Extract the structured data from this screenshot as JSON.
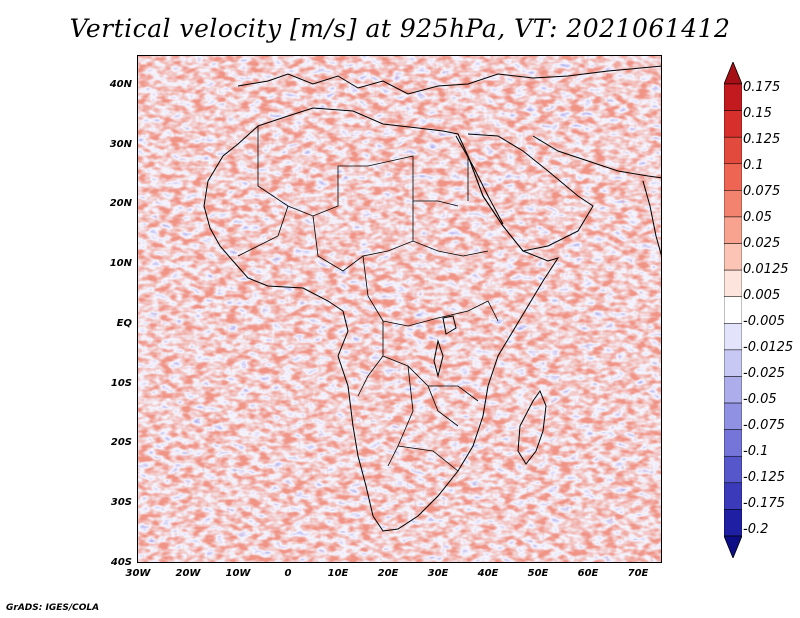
{
  "title": "Vertical velocity [m/s] at 925hPa, VT: 2021061412",
  "credit": "GrADS: IGES/COLA",
  "map": {
    "region": "Africa",
    "lat_range": [
      -40,
      45
    ],
    "lon_range": [
      -30,
      75
    ],
    "lat_ticks": [
      "40N",
      "30N",
      "20N",
      "10N",
      "EQ",
      "10S",
      "20S",
      "30S",
      "40S"
    ],
    "lon_ticks": [
      "30W",
      "20W",
      "10W",
      "0",
      "10E",
      "20E",
      "30E",
      "40E",
      "50E",
      "60E",
      "70E"
    ]
  },
  "colorbar": {
    "labels": [
      "0.175",
      "0.15",
      "0.125",
      "0.1",
      "0.075",
      "0.05",
      "0.025",
      "0.0125",
      "0.005",
      "-0.005",
      "-0.0125",
      "-0.025",
      "-0.05",
      "-0.075",
      "-0.1",
      "-0.125",
      "-0.175",
      "-0.2"
    ],
    "colors": [
      "#a50f15",
      "#c21a1f",
      "#d7302c",
      "#e34a3e",
      "#ee6553",
      "#f3836f",
      "#f7a38f",
      "#fbc4b4",
      "#fde4dc",
      "#ffffff",
      "#e3e3fb",
      "#c8c8f4",
      "#adadec",
      "#9191e3",
      "#7474d9",
      "#5757cc",
      "#3a3abb",
      "#1f1fa3",
      "#0d0d85"
    ]
  }
}
